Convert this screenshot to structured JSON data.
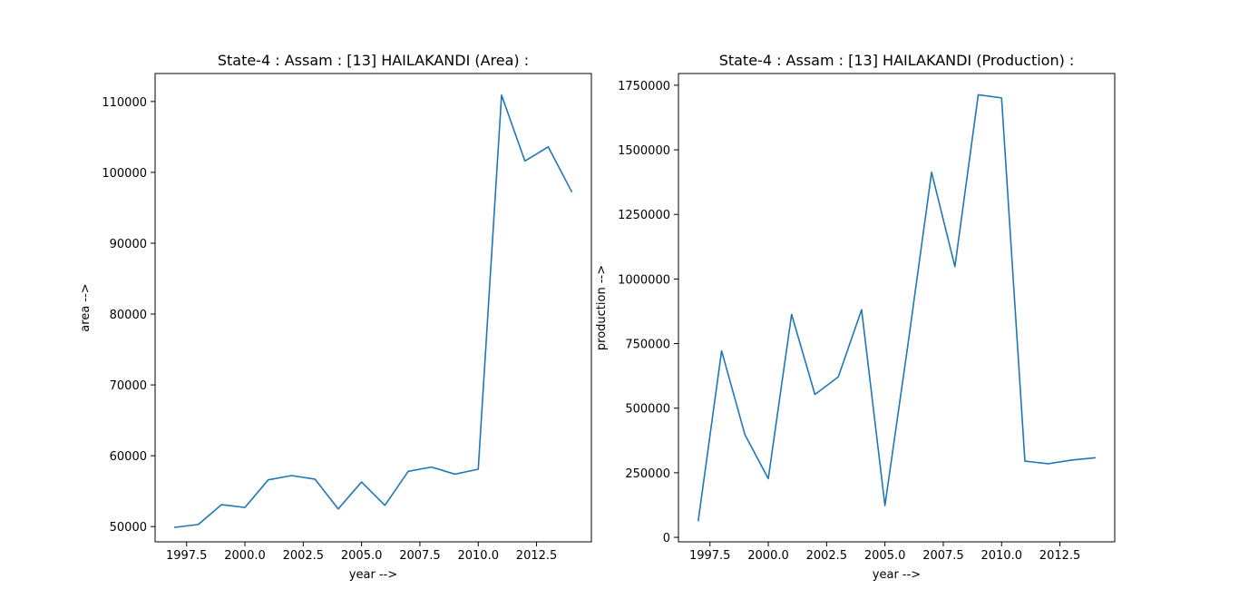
{
  "chart_data": [
    {
      "type": "line",
      "title": "State-4 : Assam : [13] HAILAKANDI (Area) :",
      "xlabel": "year -->",
      "ylabel": "area -->",
      "x": [
        1997,
        1998,
        1999,
        2000,
        2001,
        2002,
        2003,
        2004,
        2005,
        2006,
        2007,
        2008,
        2009,
        2010,
        2011,
        2012,
        2013,
        2014
      ],
      "series": [
        {
          "values": [
            49900,
            50300,
            53100,
            52700,
            56600,
            57200,
            56700,
            52500,
            56300,
            53000,
            57800,
            58400,
            57400,
            58100,
            110900,
            101600,
            103600,
            97300
          ]
        }
      ],
      "xlim": [
        1996.15,
        2014.85
      ],
      "ylim": [
        47850,
        113950
      ],
      "xticks": [
        "1997.5",
        "2000.0",
        "2002.5",
        "2005.0",
        "2007.5",
        "2010.0",
        "2012.5"
      ],
      "yticks": [
        "50000",
        "60000",
        "70000",
        "80000",
        "90000",
        "100000",
        "110000"
      ],
      "line_color": "#1f77b4",
      "grid": false,
      "legend": "none"
    },
    {
      "type": "line",
      "title": "State-4 : Assam : [13] HAILAKANDI (Production) :",
      "xlabel": "year -->",
      "ylabel": "production -->",
      "x": [
        1997,
        1998,
        1999,
        2000,
        2001,
        2002,
        2003,
        2004,
        2005,
        2006,
        2007,
        2008,
        2009,
        2010,
        2011,
        2012,
        2013,
        2014
      ],
      "series": [
        {
          "values": [
            65000,
            722000,
            397000,
            227000,
            863000,
            553000,
            621000,
            881000,
            123000,
            755000,
            1413000,
            1048000,
            1713000,
            1701000,
            295000,
            285000,
            299000,
            308000
          ]
        }
      ],
      "xlim": [
        1996.15,
        2014.85
      ],
      "ylim": [
        -17400,
        1795400
      ],
      "xticks": [
        "1997.5",
        "2000.0",
        "2002.5",
        "2005.0",
        "2007.5",
        "2010.0",
        "2012.5"
      ],
      "yticks": [
        "0",
        "250000",
        "500000",
        "750000",
        "1000000",
        "1250000",
        "1500000",
        "1750000"
      ],
      "line_color": "#1f77b4",
      "grid": false,
      "legend": "none"
    }
  ]
}
